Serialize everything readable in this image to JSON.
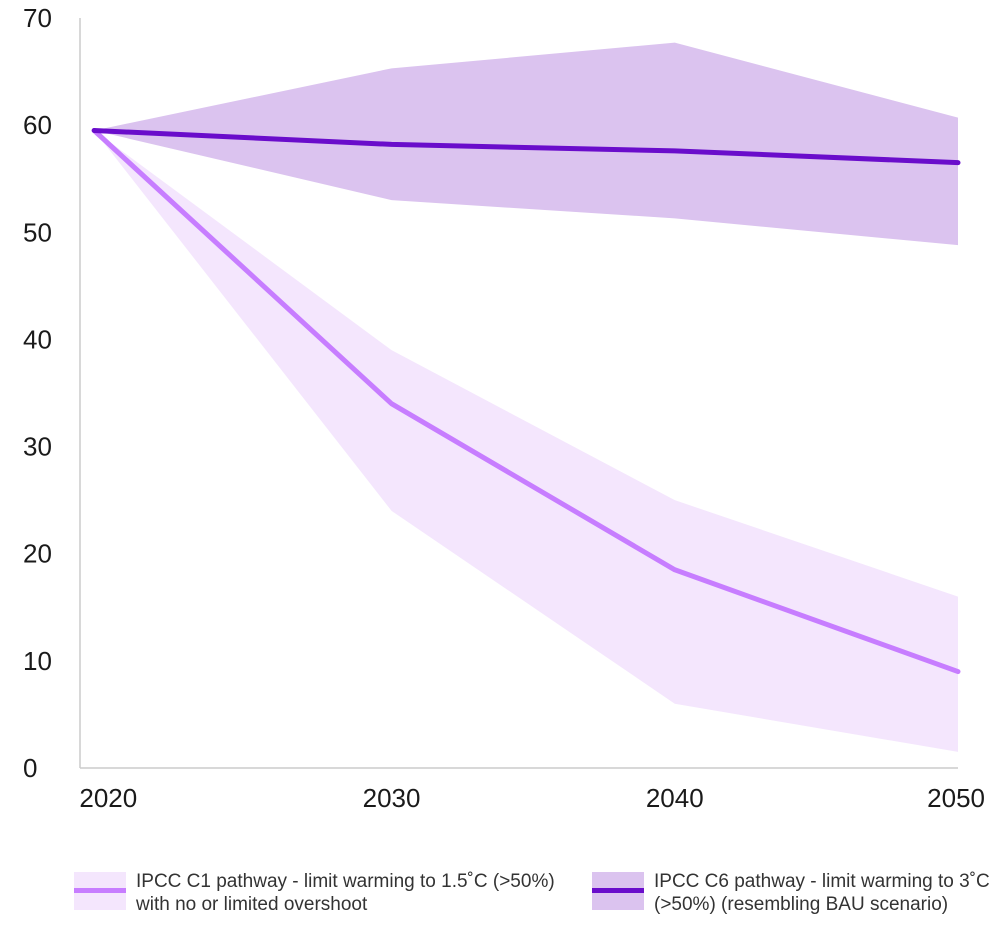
{
  "chart_data": {
    "type": "area",
    "x_ticks": [
      "2020",
      "2030",
      "2040",
      "2050"
    ],
    "y_ticks": [
      "0",
      "10",
      "20",
      "30",
      "40",
      "50",
      "60",
      "70"
    ],
    "xlim": [
      2019,
      2050
    ],
    "ylim": [
      0,
      70
    ],
    "grid": false,
    "legend_position": "bottom",
    "series": [
      {
        "name": "IPCC C1 pathway - limit warming to 1.5˚C (>50%) with no or limited overshoot",
        "x": [
          2019.5,
          2030,
          2040,
          2050
        ],
        "values": [
          59.5,
          34,
          18.5,
          9
        ],
        "range_high": [
          59.5,
          39,
          25,
          16
        ],
        "range_low": [
          59.5,
          24,
          6,
          1.5
        ],
        "line_color": "#c77dff",
        "band_color": "#f4e6fd"
      },
      {
        "name": "IPCC C6 pathway - limit warming to 3˚C (>50%) (resembling BAU scenario)",
        "x": [
          2019.5,
          2030,
          2040,
          2050
        ],
        "values": [
          59.5,
          58.2,
          57.6,
          56.5
        ],
        "range_high": [
          59.5,
          65.3,
          67.7,
          60.7
        ],
        "range_low": [
          59.5,
          53,
          51.3,
          48.8
        ],
        "line_color": "#6a0dcb",
        "band_color": "#dbc3ef"
      }
    ]
  },
  "legend": {
    "c1_label": "IPCC C1 pathway - limit warming to 1.5˚C (>50%) with no or limited overshoot",
    "c6_label": "IPCC C6 pathway - limit warming to 3˚C (>50%) (resembling BAU scenario)"
  }
}
